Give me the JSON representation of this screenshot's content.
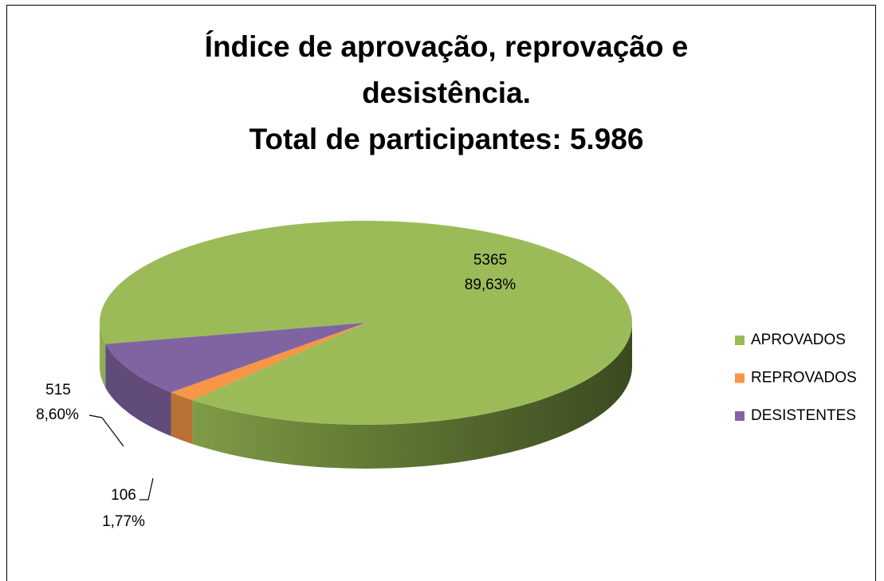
{
  "chart_data": {
    "type": "pie3d",
    "title": "Índice de aprovação, reprovação e desistência.",
    "subtitle": "Total de participantes: 5.986",
    "categories": [
      "APROVADOS",
      "REPROVADOS",
      "DESISTENTES"
    ],
    "values": [
      5365,
      106,
      515
    ],
    "percent_labels": [
      "89,63%",
      "1,77%",
      "8,60%"
    ],
    "colors": [
      "#9bbb59",
      "#f79646",
      "#8064a2"
    ],
    "legend": "right"
  }
}
